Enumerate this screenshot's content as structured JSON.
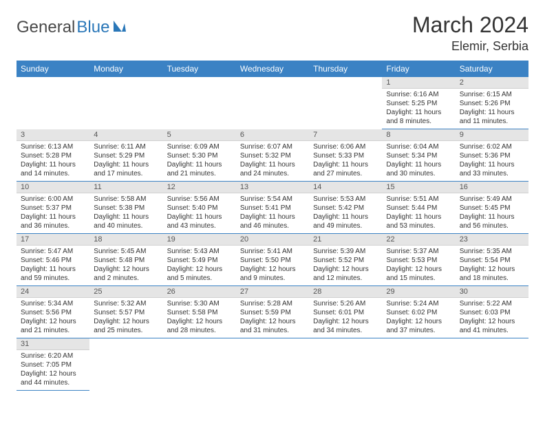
{
  "brand": {
    "part1": "General",
    "part2": "Blue"
  },
  "title": "March 2024",
  "location": "Elemir, Serbia",
  "colors": {
    "header_bg": "#3b82c4",
    "header_text": "#ffffff",
    "daynum_bg": "#e5e5e5",
    "border": "#3b82c4",
    "brand_gray": "#4a4a4a",
    "brand_blue": "#2a77b8"
  },
  "weekdays": [
    "Sunday",
    "Monday",
    "Tuesday",
    "Wednesday",
    "Thursday",
    "Friday",
    "Saturday"
  ],
  "weeks": [
    [
      null,
      null,
      null,
      null,
      null,
      {
        "n": "1",
        "sunrise": "Sunrise: 6:16 AM",
        "sunset": "Sunset: 5:25 PM",
        "day1": "Daylight: 11 hours",
        "day2": "and 8 minutes."
      },
      {
        "n": "2",
        "sunrise": "Sunrise: 6:15 AM",
        "sunset": "Sunset: 5:26 PM",
        "day1": "Daylight: 11 hours",
        "day2": "and 11 minutes."
      }
    ],
    [
      {
        "n": "3",
        "sunrise": "Sunrise: 6:13 AM",
        "sunset": "Sunset: 5:28 PM",
        "day1": "Daylight: 11 hours",
        "day2": "and 14 minutes."
      },
      {
        "n": "4",
        "sunrise": "Sunrise: 6:11 AM",
        "sunset": "Sunset: 5:29 PM",
        "day1": "Daylight: 11 hours",
        "day2": "and 17 minutes."
      },
      {
        "n": "5",
        "sunrise": "Sunrise: 6:09 AM",
        "sunset": "Sunset: 5:30 PM",
        "day1": "Daylight: 11 hours",
        "day2": "and 21 minutes."
      },
      {
        "n": "6",
        "sunrise": "Sunrise: 6:07 AM",
        "sunset": "Sunset: 5:32 PM",
        "day1": "Daylight: 11 hours",
        "day2": "and 24 minutes."
      },
      {
        "n": "7",
        "sunrise": "Sunrise: 6:06 AM",
        "sunset": "Sunset: 5:33 PM",
        "day1": "Daylight: 11 hours",
        "day2": "and 27 minutes."
      },
      {
        "n": "8",
        "sunrise": "Sunrise: 6:04 AM",
        "sunset": "Sunset: 5:34 PM",
        "day1": "Daylight: 11 hours",
        "day2": "and 30 minutes."
      },
      {
        "n": "9",
        "sunrise": "Sunrise: 6:02 AM",
        "sunset": "Sunset: 5:36 PM",
        "day1": "Daylight: 11 hours",
        "day2": "and 33 minutes."
      }
    ],
    [
      {
        "n": "10",
        "sunrise": "Sunrise: 6:00 AM",
        "sunset": "Sunset: 5:37 PM",
        "day1": "Daylight: 11 hours",
        "day2": "and 36 minutes."
      },
      {
        "n": "11",
        "sunrise": "Sunrise: 5:58 AM",
        "sunset": "Sunset: 5:38 PM",
        "day1": "Daylight: 11 hours",
        "day2": "and 40 minutes."
      },
      {
        "n": "12",
        "sunrise": "Sunrise: 5:56 AM",
        "sunset": "Sunset: 5:40 PM",
        "day1": "Daylight: 11 hours",
        "day2": "and 43 minutes."
      },
      {
        "n": "13",
        "sunrise": "Sunrise: 5:54 AM",
        "sunset": "Sunset: 5:41 PM",
        "day1": "Daylight: 11 hours",
        "day2": "and 46 minutes."
      },
      {
        "n": "14",
        "sunrise": "Sunrise: 5:53 AM",
        "sunset": "Sunset: 5:42 PM",
        "day1": "Daylight: 11 hours",
        "day2": "and 49 minutes."
      },
      {
        "n": "15",
        "sunrise": "Sunrise: 5:51 AM",
        "sunset": "Sunset: 5:44 PM",
        "day1": "Daylight: 11 hours",
        "day2": "and 53 minutes."
      },
      {
        "n": "16",
        "sunrise": "Sunrise: 5:49 AM",
        "sunset": "Sunset: 5:45 PM",
        "day1": "Daylight: 11 hours",
        "day2": "and 56 minutes."
      }
    ],
    [
      {
        "n": "17",
        "sunrise": "Sunrise: 5:47 AM",
        "sunset": "Sunset: 5:46 PM",
        "day1": "Daylight: 11 hours",
        "day2": "and 59 minutes."
      },
      {
        "n": "18",
        "sunrise": "Sunrise: 5:45 AM",
        "sunset": "Sunset: 5:48 PM",
        "day1": "Daylight: 12 hours",
        "day2": "and 2 minutes."
      },
      {
        "n": "19",
        "sunrise": "Sunrise: 5:43 AM",
        "sunset": "Sunset: 5:49 PM",
        "day1": "Daylight: 12 hours",
        "day2": "and 5 minutes."
      },
      {
        "n": "20",
        "sunrise": "Sunrise: 5:41 AM",
        "sunset": "Sunset: 5:50 PM",
        "day1": "Daylight: 12 hours",
        "day2": "and 9 minutes."
      },
      {
        "n": "21",
        "sunrise": "Sunrise: 5:39 AM",
        "sunset": "Sunset: 5:52 PM",
        "day1": "Daylight: 12 hours",
        "day2": "and 12 minutes."
      },
      {
        "n": "22",
        "sunrise": "Sunrise: 5:37 AM",
        "sunset": "Sunset: 5:53 PM",
        "day1": "Daylight: 12 hours",
        "day2": "and 15 minutes."
      },
      {
        "n": "23",
        "sunrise": "Sunrise: 5:35 AM",
        "sunset": "Sunset: 5:54 PM",
        "day1": "Daylight: 12 hours",
        "day2": "and 18 minutes."
      }
    ],
    [
      {
        "n": "24",
        "sunrise": "Sunrise: 5:34 AM",
        "sunset": "Sunset: 5:56 PM",
        "day1": "Daylight: 12 hours",
        "day2": "and 21 minutes."
      },
      {
        "n": "25",
        "sunrise": "Sunrise: 5:32 AM",
        "sunset": "Sunset: 5:57 PM",
        "day1": "Daylight: 12 hours",
        "day2": "and 25 minutes."
      },
      {
        "n": "26",
        "sunrise": "Sunrise: 5:30 AM",
        "sunset": "Sunset: 5:58 PM",
        "day1": "Daylight: 12 hours",
        "day2": "and 28 minutes."
      },
      {
        "n": "27",
        "sunrise": "Sunrise: 5:28 AM",
        "sunset": "Sunset: 5:59 PM",
        "day1": "Daylight: 12 hours",
        "day2": "and 31 minutes."
      },
      {
        "n": "28",
        "sunrise": "Sunrise: 5:26 AM",
        "sunset": "Sunset: 6:01 PM",
        "day1": "Daylight: 12 hours",
        "day2": "and 34 minutes."
      },
      {
        "n": "29",
        "sunrise": "Sunrise: 5:24 AM",
        "sunset": "Sunset: 6:02 PM",
        "day1": "Daylight: 12 hours",
        "day2": "and 37 minutes."
      },
      {
        "n": "30",
        "sunrise": "Sunrise: 5:22 AM",
        "sunset": "Sunset: 6:03 PM",
        "day1": "Daylight: 12 hours",
        "day2": "and 41 minutes."
      }
    ],
    [
      {
        "n": "31",
        "sunrise": "Sunrise: 6:20 AM",
        "sunset": "Sunset: 7:05 PM",
        "day1": "Daylight: 12 hours",
        "day2": "and 44 minutes."
      },
      null,
      null,
      null,
      null,
      null,
      null
    ]
  ]
}
